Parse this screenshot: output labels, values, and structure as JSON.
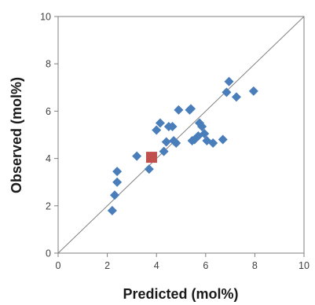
{
  "chart_data": {
    "type": "scatter",
    "xlabel": "Predicted (mol%)",
    "ylabel": "Observed (mol%)",
    "xlim": [
      0,
      10
    ],
    "ylim": [
      0,
      10
    ],
    "x_ticks": [
      0,
      2,
      4,
      6,
      8,
      10
    ],
    "y_ticks": [
      0,
      2,
      4,
      6,
      8,
      10
    ],
    "grid": false,
    "legend": "none",
    "reference_line": {
      "x": [
        0,
        10
      ],
      "y": [
        0,
        10
      ],
      "color": "#808080"
    },
    "series": [
      {
        "marker": "diamond",
        "color": "#4a7ebb",
        "points": [
          [
            2.2,
            1.8
          ],
          [
            2.3,
            2.45
          ],
          [
            2.4,
            3.0
          ],
          [
            2.4,
            3.45
          ],
          [
            3.2,
            4.1
          ],
          [
            3.7,
            3.55
          ],
          [
            4.0,
            5.2
          ],
          [
            4.15,
            5.5
          ],
          [
            4.3,
            4.3
          ],
          [
            4.4,
            4.7
          ],
          [
            4.5,
            5.35
          ],
          [
            4.65,
            5.35
          ],
          [
            4.7,
            4.75
          ],
          [
            4.8,
            4.65
          ],
          [
            4.9,
            6.05
          ],
          [
            5.35,
            6.05
          ],
          [
            5.4,
            6.1
          ],
          [
            5.45,
            4.75
          ],
          [
            5.55,
            4.8
          ],
          [
            5.7,
            4.95
          ],
          [
            5.75,
            5.5
          ],
          [
            5.85,
            5.35
          ],
          [
            5.95,
            5.05
          ],
          [
            6.05,
            4.75
          ],
          [
            6.3,
            4.65
          ],
          [
            6.7,
            4.8
          ],
          [
            6.85,
            6.8
          ],
          [
            6.95,
            7.25
          ],
          [
            7.25,
            6.6
          ],
          [
            7.95,
            6.85
          ]
        ]
      },
      {
        "marker": "square",
        "color": "#c0504d",
        "points": [
          [
            3.8,
            4.05
          ]
        ]
      }
    ]
  }
}
